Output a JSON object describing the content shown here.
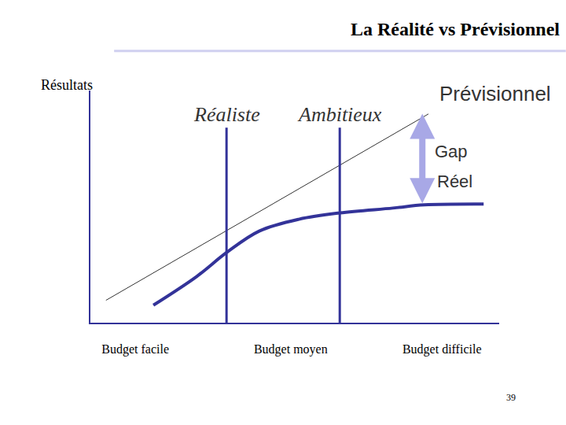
{
  "chart_data": {
    "type": "line",
    "title": "La Réalité vs Prévisionnel",
    "ylabel": "Résultats",
    "xlim": [
      0,
      10
    ],
    "ylim": [
      0,
      11
    ],
    "xticks": [
      {
        "value": 1.1,
        "label": "Budget facile"
      },
      {
        "value": 4.9,
        "label": "Budget moyen"
      },
      {
        "value": 8.6,
        "label": "Budget difficile"
      }
    ],
    "yticks": [],
    "tick_labels": "x",
    "grid": false,
    "series": [
      {
        "name": "Prévisionnel",
        "color": "#333333",
        "line_style": "thin",
        "x": [
          0.38,
          8.27
        ],
        "values": [
          1.06,
          9.89
        ]
      },
      {
        "name": "Réel",
        "color": "#333399",
        "line_style": "thick",
        "x": [
          1.54,
          2.6,
          3.33,
          4.13,
          5.1,
          6.1,
          7.4,
          8.17,
          9.62
        ],
        "values": [
          0.83,
          2.19,
          3.32,
          4.34,
          4.9,
          5.2,
          5.43,
          5.58,
          5.62
        ]
      }
    ],
    "vlines": [
      {
        "label": "Réaliste",
        "x": 3.33,
        "color": "#333399"
      },
      {
        "label": "Ambitieux",
        "x": 6.1,
        "color": "#333399"
      }
    ],
    "gap": {
      "label": "Gap",
      "x": 8.12,
      "from": 5.6,
      "to": 9.9,
      "color": "#a8a8e6"
    },
    "page_number": "39"
  }
}
